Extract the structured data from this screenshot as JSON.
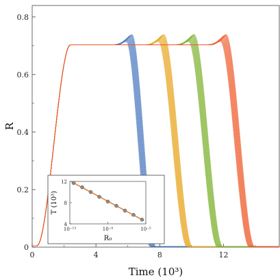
{
  "chart_data": [
    {
      "type": "line",
      "xlabel": "Time (10³)",
      "ylabel": "R",
      "xlim": [
        0,
        15.5
      ],
      "ylim": [
        0,
        0.84
      ],
      "x_ticks": [
        "0",
        "4",
        "8",
        "12"
      ],
      "y_ticks": [
        "0",
        "0.2",
        "0.4",
        "0.6",
        "0.8"
      ],
      "plateau": 0.703,
      "rise": {
        "start": 0.3,
        "end": 2.4
      },
      "series": [
        {
          "color": "#4a78bf",
          "collapse_start": 5.9,
          "collapse_end": 7.4,
          "spread": 0.035
        },
        {
          "color": "#e8a41c",
          "collapse_start": 7.9,
          "collapse_end": 9.7,
          "spread": 0.035
        },
        {
          "color": "#7cb02c",
          "collapse_start": 9.8,
          "collapse_end": 11.6,
          "spread": 0.035
        },
        {
          "color": "#ee5a2a",
          "collapse_start": 11.8,
          "collapse_end": 13.6,
          "spread": 0.035
        }
      ]
    },
    {
      "type": "scatter",
      "xlabel": "R₀",
      "ylabel": "T (10³)",
      "x_scale": "log",
      "x_exponent_range": [
        -13,
        -5
      ],
      "x_ticks": [
        "10⁻¹³",
        "10⁻⁹",
        "10⁻⁵"
      ],
      "y_ticks": [
        "4",
        "8",
        "12"
      ],
      "ylim": [
        4,
        12
      ],
      "x_exponents": [
        -12.6,
        -11.7,
        -10.8,
        -9.9,
        -9.0,
        -8.1,
        -7.2,
        -6.3,
        -5.4
      ],
      "y": [
        11.7,
        10.9,
        10.0,
        9.1,
        8.2,
        7.4,
        6.5,
        5.7,
        4.8
      ],
      "fit_color": "#ee7a2a",
      "marker_color": "#8a8a8a"
    }
  ]
}
